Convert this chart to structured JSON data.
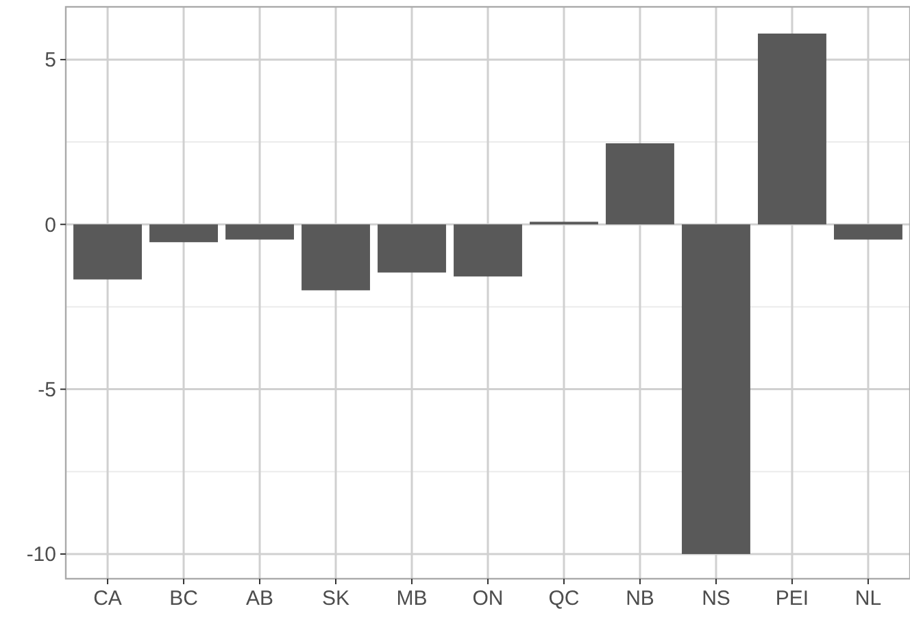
{
  "chart_data": {
    "type": "bar",
    "categories": [
      "CA",
      "BC",
      "AB",
      "SK",
      "MB",
      "ON",
      "QC",
      "NB",
      "NS",
      "PEI",
      "NL"
    ],
    "values": [
      -1.67,
      -0.54,
      -0.46,
      -2.0,
      -1.46,
      -1.58,
      0.08,
      2.46,
      -10.0,
      5.79,
      -0.46
    ],
    "color": "#595959",
    "ylim": [
      -10.75,
      6.6
    ],
    "yticks": [
      -10,
      -5,
      0,
      5
    ],
    "grid": true
  }
}
